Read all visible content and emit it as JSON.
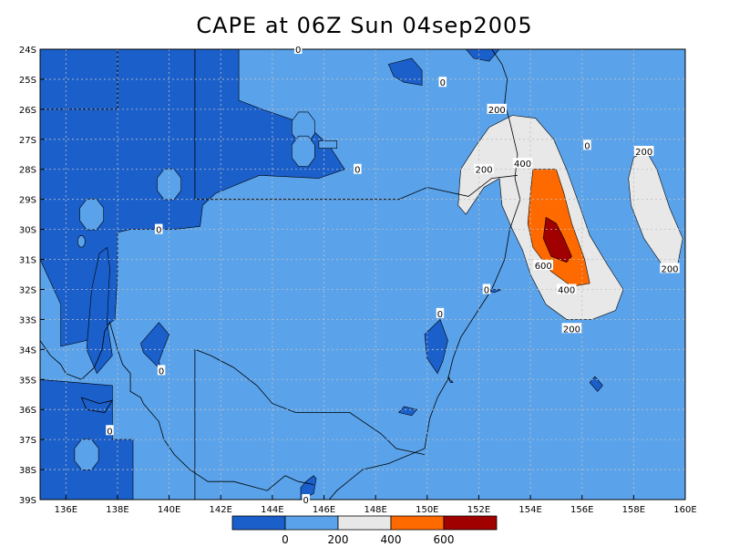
{
  "title": "CAPE at 06Z Sun 04sep2005",
  "colors": {
    "lt0": "#1b5fcb",
    "c0_200": "#5aa3eb",
    "c200_400": "#e8e8e8",
    "c400_600": "#ff6a00",
    "gt600": "#a00000",
    "grid": "#c0c0c0"
  },
  "lon_range": [
    135,
    160
  ],
  "lat_range": [
    -39,
    -24
  ],
  "x_ticks": [
    {
      "v": 136,
      "label": "136E"
    },
    {
      "v": 138,
      "label": "138E"
    },
    {
      "v": 140,
      "label": "140E"
    },
    {
      "v": 142,
      "label": "142E"
    },
    {
      "v": 144,
      "label": "144E"
    },
    {
      "v": 146,
      "label": "146E"
    },
    {
      "v": 148,
      "label": "148E"
    },
    {
      "v": 150,
      "label": "150E"
    },
    {
      "v": 152,
      "label": "152E"
    },
    {
      "v": 154,
      "label": "154E"
    },
    {
      "v": 156,
      "label": "156E"
    },
    {
      "v": 158,
      "label": "158E"
    },
    {
      "v": 160,
      "label": "160E"
    }
  ],
  "y_ticks": [
    {
      "v": -24,
      "label": "24S"
    },
    {
      "v": -25,
      "label": "25S"
    },
    {
      "v": -26,
      "label": "26S"
    },
    {
      "v": -27,
      "label": "27S"
    },
    {
      "v": -28,
      "label": "28S"
    },
    {
      "v": -29,
      "label": "29S"
    },
    {
      "v": -30,
      "label": "30S"
    },
    {
      "v": -31,
      "label": "31S"
    },
    {
      "v": -32,
      "label": "32S"
    },
    {
      "v": -33,
      "label": "33S"
    },
    {
      "v": -34,
      "label": "34S"
    },
    {
      "v": -35,
      "label": "35S"
    },
    {
      "v": -36,
      "label": "36S"
    },
    {
      "v": -37,
      "label": "37S"
    },
    {
      "v": -38,
      "label": "38S"
    },
    {
      "v": -39,
      "label": "39S"
    }
  ],
  "contour_labels": [
    {
      "lon": 145.0,
      "lat": -24.0,
      "text": "0"
    },
    {
      "lon": 150.6,
      "lat": -25.1,
      "text": "0"
    },
    {
      "lon": 152.7,
      "lat": -26.0,
      "text": "200"
    },
    {
      "lon": 156.2,
      "lat": -27.2,
      "text": "0"
    },
    {
      "lon": 158.4,
      "lat": -27.4,
      "text": "200"
    },
    {
      "lon": 147.3,
      "lat": -28.0,
      "text": "0"
    },
    {
      "lon": 153.7,
      "lat": -27.8,
      "text": "400"
    },
    {
      "lon": 152.2,
      "lat": -28.0,
      "text": "200"
    },
    {
      "lon": 139.6,
      "lat": -30.0,
      "text": "0"
    },
    {
      "lon": 154.5,
      "lat": -31.2,
      "text": "600"
    },
    {
      "lon": 159.4,
      "lat": -31.3,
      "text": "200"
    },
    {
      "lon": 152.3,
      "lat": -32.0,
      "text": "0"
    },
    {
      "lon": 155.4,
      "lat": -32.0,
      "text": "400"
    },
    {
      "lon": 150.5,
      "lat": -32.8,
      "text": "0"
    },
    {
      "lon": 155.6,
      "lat": -33.3,
      "text": "200"
    },
    {
      "lon": 139.7,
      "lat": -34.7,
      "text": "0"
    },
    {
      "lon": 137.7,
      "lat": -36.7,
      "text": "0"
    },
    {
      "lon": 145.3,
      "lat": -39.0,
      "text": "0"
    }
  ],
  "colorbar": {
    "labels": [
      {
        "pos": 1,
        "text": "0"
      },
      {
        "pos": 2,
        "text": "200"
      },
      {
        "pos": 3,
        "text": "400"
      },
      {
        "pos": 4,
        "text": "600"
      }
    ]
  }
}
